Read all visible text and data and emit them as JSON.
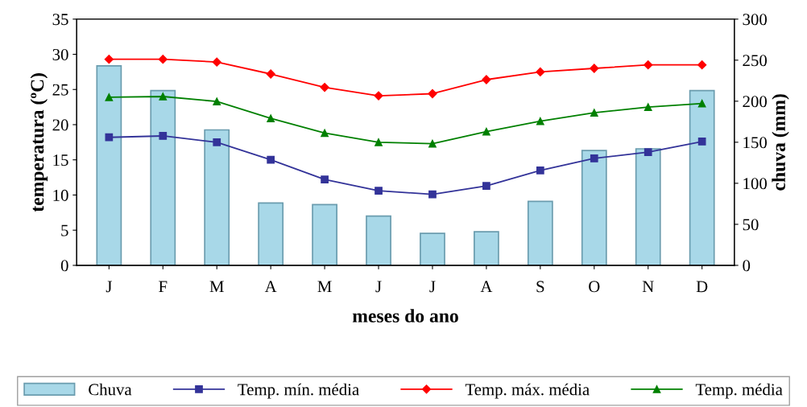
{
  "chart_data": {
    "type": "bar",
    "xlabel": "meses do ano",
    "ylabel": "temperatura (ºC)",
    "y2label": "chuva (mm)",
    "categories": [
      "J",
      "F",
      "M",
      "A",
      "M",
      "J",
      "J",
      "A",
      "S",
      "O",
      "N",
      "D"
    ],
    "series": [
      {
        "name": "Chuva",
        "axis": "y2",
        "color": "#a8d8e8",
        "values": [
          243,
          213,
          165,
          76,
          74,
          60,
          39,
          41,
          78,
          140,
          142,
          213
        ]
      },
      {
        "name": "Temp. mín. média",
        "type": "line",
        "marker": "square",
        "color": "#333399",
        "values": [
          18.2,
          18.4,
          17.5,
          15.0,
          12.2,
          10.6,
          10.1,
          11.3,
          13.5,
          15.2,
          16.1,
          17.6
        ]
      },
      {
        "name": "Temp. máx. média",
        "type": "line",
        "marker": "diamond",
        "color": "#ff0000",
        "values": [
          29.3,
          29.3,
          28.9,
          27.2,
          25.3,
          24.1,
          24.4,
          26.4,
          27.5,
          28.0,
          28.5,
          28.5
        ]
      },
      {
        "name": "Temp. média",
        "type": "line",
        "marker": "triangle",
        "color": "#008000",
        "values": [
          23.9,
          24.0,
          23.3,
          20.9,
          18.8,
          17.5,
          17.3,
          19.0,
          20.5,
          21.7,
          22.5,
          23.0
        ]
      }
    ],
    "ylim": [
      0,
      35
    ],
    "yticks": [
      0,
      5,
      10,
      15,
      20,
      25,
      30,
      35
    ],
    "y2lim": [
      0,
      300
    ],
    "y2ticks": [
      0,
      50,
      100,
      150,
      200,
      250,
      300
    ],
    "grid": false,
    "legend": "bottom",
    "line_style": "solid"
  }
}
